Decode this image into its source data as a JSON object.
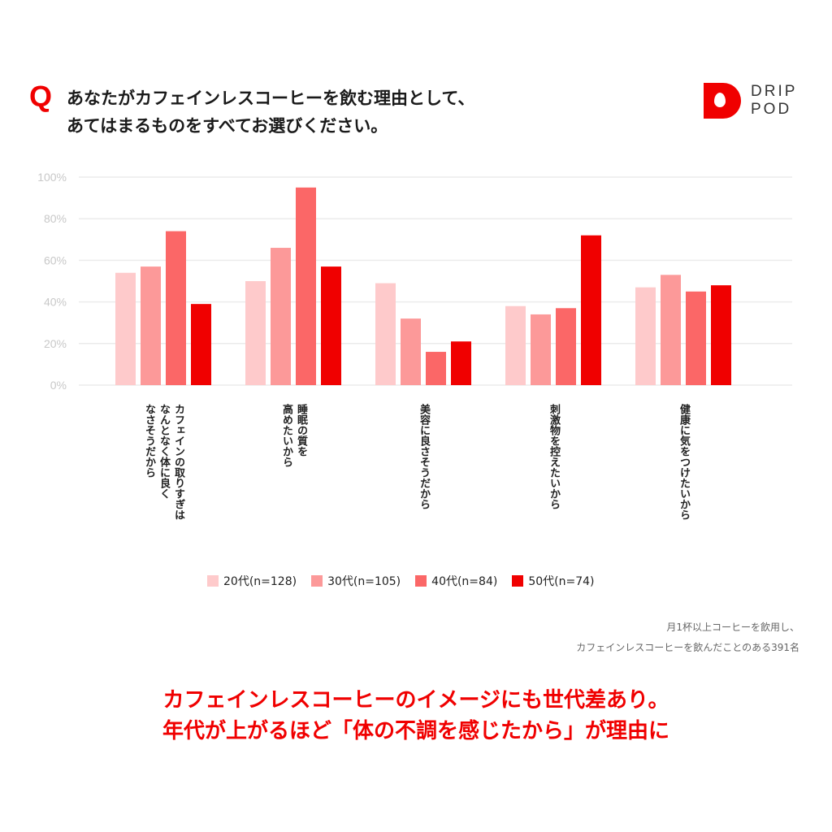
{
  "header": {
    "q_mark": "Q",
    "title_lines": [
      "あなたがカフェインレスコーヒーを飲む理由として、",
      "あてはまるものをすべてお選びください。"
    ],
    "logo_lines": [
      "DRIP",
      "POD"
    ]
  },
  "chart_data": {
    "type": "bar",
    "title": "あなたがカフェインレスコーヒーを飲む理由として、あてはまるものをすべてお選びください。",
    "xlabel": "",
    "ylabel": "",
    "ylim": [
      0,
      100
    ],
    "yticks": [
      "0%",
      "20%",
      "40%",
      "60%",
      "80%",
      "100%"
    ],
    "grid": true,
    "legend_position": "bottom",
    "categories": [
      [
        "カフェインの取りすぎは",
        "なんとなく体に良く",
        "なさそうだから"
      ],
      [
        "睡眠の質を",
        "高めたいから"
      ],
      [
        "美容に良さそうだから"
      ],
      [
        "刺激物を控えたいから"
      ],
      [
        "健康に気をつけたいから"
      ]
    ],
    "series": [
      {
        "name": "20代(n=128)",
        "color": "#fecacb",
        "values": [
          54,
          50,
          49,
          38,
          47
        ]
      },
      {
        "name": "30代(n=105)",
        "color": "#fc9999",
        "values": [
          57,
          66,
          32,
          34,
          53
        ]
      },
      {
        "name": "40代(n=84)",
        "color": "#fb6767",
        "values": [
          74,
          95,
          16,
          37,
          45
        ]
      },
      {
        "name": "50代(n=74)",
        "color": "#f00000",
        "values": [
          39,
          57,
          21,
          72,
          48
        ]
      }
    ]
  },
  "note_lines": [
    "月1杯以上コーヒーを飲用し、",
    "カフェインレスコーヒーを飲んだことのある391名"
  ],
  "conclusion_lines": [
    "カフェインレスコーヒーのイメージにも世代差あり。",
    "年代が上がるほど「体の不調を感じたから」が理由に"
  ]
}
